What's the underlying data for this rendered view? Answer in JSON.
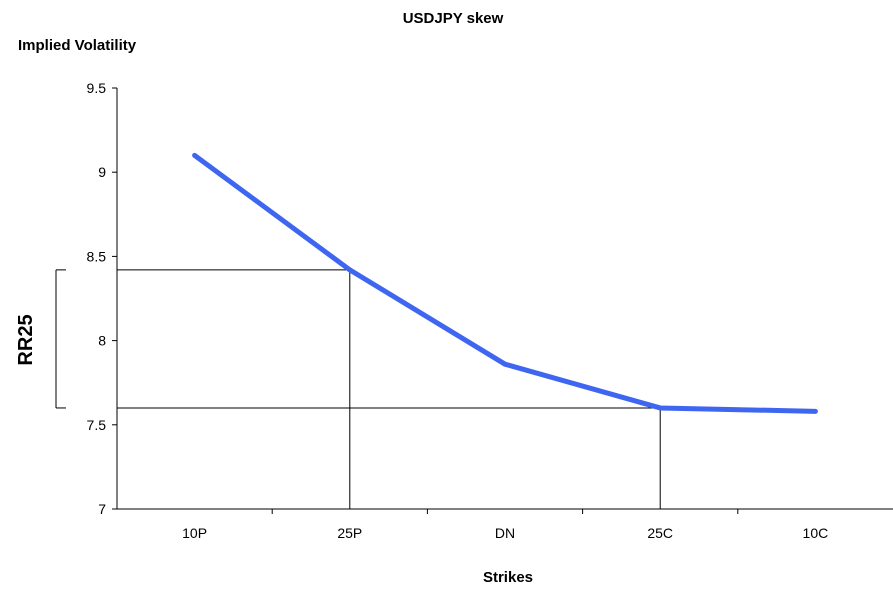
{
  "chart_data": {
    "type": "line",
    "title": "USDJPY skew",
    "ylabel": "Implied Volatility",
    "xlabel": "Strikes",
    "categories": [
      "10P",
      "25P",
      "DN",
      "25C",
      "10C"
    ],
    "series": [
      {
        "values": [
          9.1,
          8.42,
          7.86,
          7.6,
          7.58
        ],
        "color": "#3f66f0"
      }
    ],
    "ylim": [
      7,
      9.5
    ],
    "yticks": [
      "7",
      "7.5",
      "8",
      "8.5",
      "9",
      "9.5"
    ],
    "grid": false,
    "annotation": {
      "label": "RR25",
      "from_category": "25P",
      "to_category": "25C",
      "upper_value": 8.42,
      "lower_value": 7.6
    }
  }
}
